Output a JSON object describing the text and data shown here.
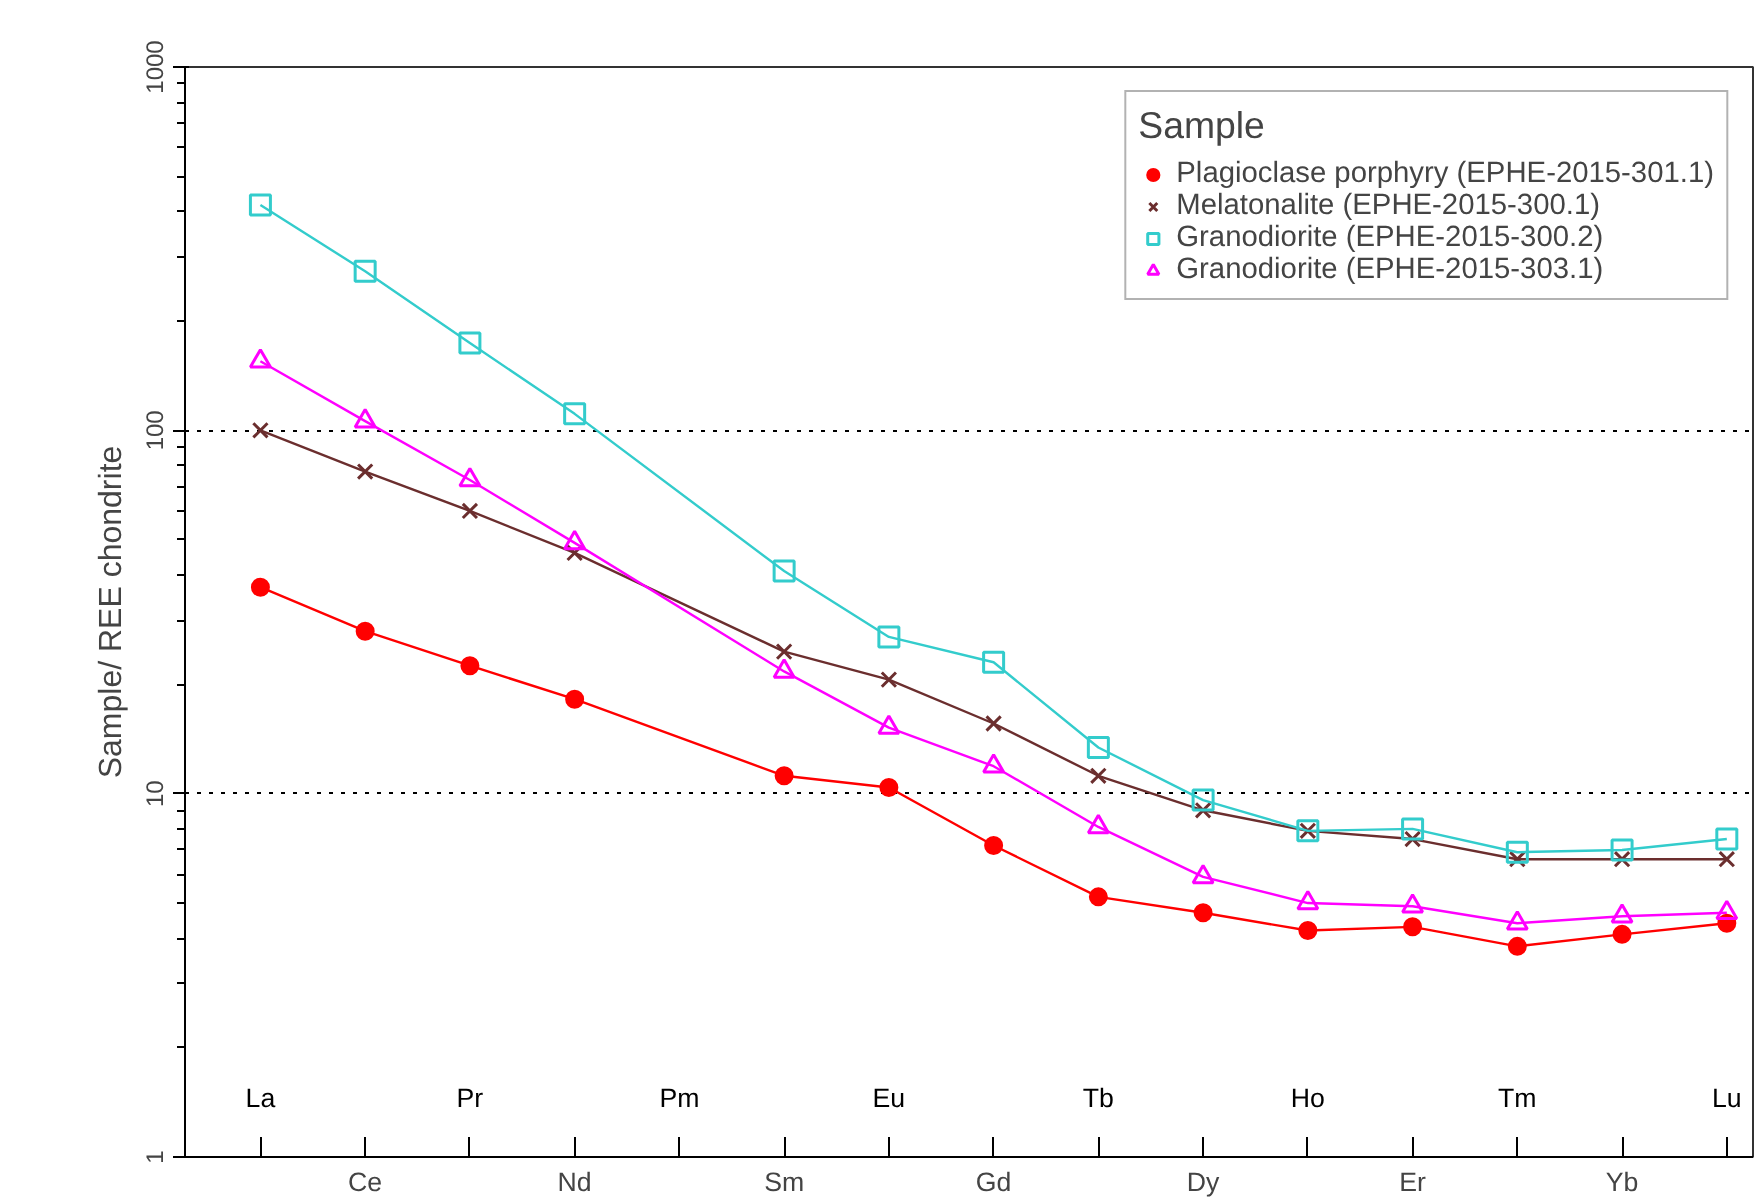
{
  "chart_data": {
    "type": "line",
    "ylabel": "Sample/ REE chondrite",
    "legend_title": "Sample",
    "legend": "top right",
    "log": true,
    "grid": "y",
    "categories": [
      "La",
      "Ce",
      "Pr",
      "Nd",
      "Pm",
      "Sm",
      "Eu",
      "Gd",
      "Tb",
      "Dy",
      "Ho",
      "Er",
      "Tm",
      "Yb",
      "Lu"
    ],
    "ylim": [
      1,
      1000
    ],
    "yticks": [
      1,
      10,
      100,
      1000
    ],
    "series": [
      {
        "name": "Plagioclase porphyry (EPHE-2015-301.1)",
        "color": "#ff0000",
        "marker": "circle",
        "values": [
          37,
          28,
          22.5,
          18.2,
          null,
          11.2,
          10.4,
          7.2,
          5.2,
          4.7,
          4.2,
          4.3,
          3.8,
          4.1,
          4.4
        ]
      },
      {
        "name": "Melatonalite (EPHE-2015-300.1)",
        "color": "#6b2e2e",
        "marker": "cross",
        "values": [
          100,
          77,
          60,
          46,
          null,
          24.6,
          20.6,
          15.6,
          11.2,
          9.0,
          7.9,
          7.5,
          6.6,
          6.6,
          6.6
        ]
      },
      {
        "name": "Granodiorite (EPHE-2015-300.2)",
        "color": "#33cccc",
        "marker": "square",
        "values": [
          417,
          274,
          174,
          111,
          null,
          41,
          27,
          23,
          13.4,
          9.6,
          7.9,
          8.0,
          6.9,
          7.0,
          7.5
        ]
      },
      {
        "name": "Granodiorite (EPHE-2015-303.1)",
        "color": "#ff00ff",
        "marker": "triangle",
        "values": [
          155,
          106,
          73,
          49,
          null,
          21.7,
          15.2,
          11.9,
          8.1,
          5.9,
          5.0,
          4.9,
          4.4,
          4.6,
          4.7
        ]
      }
    ]
  }
}
